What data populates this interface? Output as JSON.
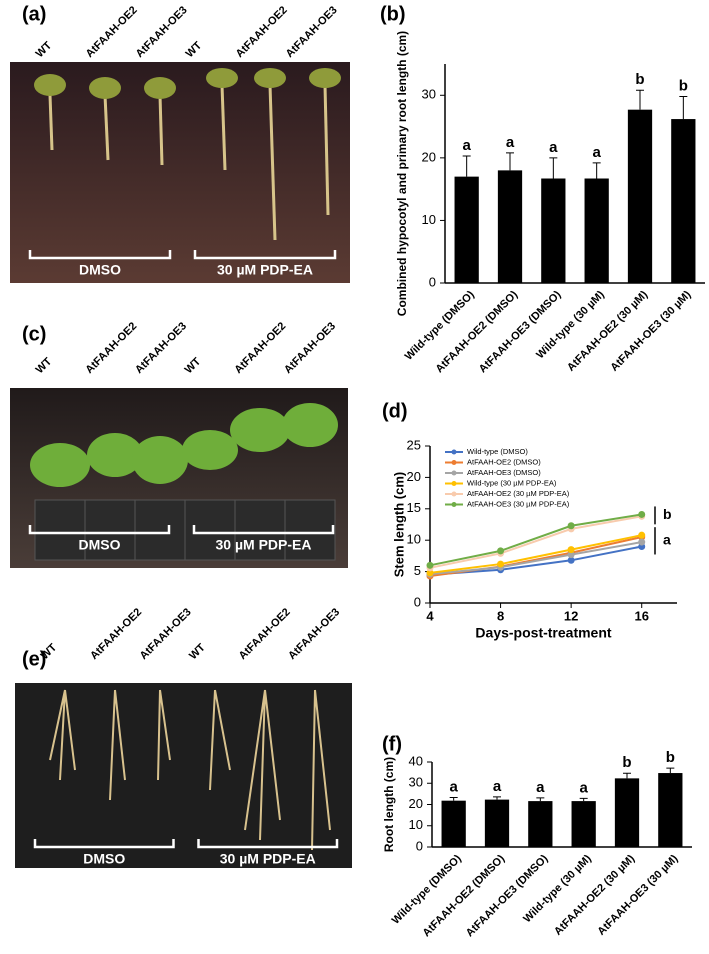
{
  "figure": {
    "panel_labels": [
      "(a)",
      "(b)",
      "(c)",
      "(d)",
      "(e)",
      "(f)"
    ],
    "photos": [
      {
        "lanes": [
          "WT",
          "AtFAAH-OE2",
          "AtFAAH-OE3",
          "WT",
          "AtFAAH-OE2",
          "AtFAAH-OE3"
        ],
        "groups": [
          "DMSO",
          "30 µM PDP-EA"
        ]
      },
      {
        "lanes": [
          "WT",
          "AtFAAH-OE2",
          "AtFAAH-OE3",
          "WT",
          "AtFAAH-OE2",
          "AtFAAH-OE3"
        ],
        "groups": [
          "DMSO",
          "30 µM PDP-EA"
        ]
      },
      {
        "lanes": [
          "WT",
          "AtFAAH-OE2",
          "AtFAAH-OE3",
          "WT",
          "AtFAAH-OE2",
          "AtFAAH-OE3"
        ],
        "groups": [
          "DMSO",
          "30 µM PDP-EA"
        ]
      }
    ]
  },
  "chart_data": [
    {
      "type": "bar",
      "y_label": "Combined hypocotyl and primary root length (cm)",
      "categories": [
        "Wild-type (DMSO)",
        "AtFAAH-OE2 (DMSO)",
        "AtFAAH-OE3 (DMSO)",
        "Wild-type (30 µM)",
        "AtFAAH-OE2 (30 µM)",
        "AtFAAH-OE3 (30 µM)"
      ],
      "values": [
        17,
        18,
        16.7,
        16.7,
        27.7,
        26.2
      ],
      "errors": [
        3.3,
        2.8,
        3.3,
        2.5,
        3.1,
        3.6
      ],
      "annotations": [
        "a",
        "a",
        "a",
        "a",
        "b",
        "b"
      ],
      "color": "#000000",
      "ylim": [
        0,
        35
      ],
      "yticks": [
        0,
        10,
        20,
        30
      ]
    },
    {
      "type": "line",
      "y_label": "Stem length (cm)",
      "x_label": "Days-post-treatment",
      "x": [
        4,
        8,
        12,
        16
      ],
      "series": [
        {
          "name": "Wild-type (DMSO)",
          "color": "#4472c4",
          "values": [
            4.5,
            5.3,
            6.8,
            9.0
          ]
        },
        {
          "name": "AtFAAH-OE2 (DMSO)",
          "color": "#ed7d31",
          "values": [
            4.3,
            5.8,
            8.0,
            10.5
          ]
        },
        {
          "name": "AtFAAH-OE3 (DMSO)",
          "color": "#a5a5a5",
          "values": [
            4.6,
            5.7,
            7.7,
            9.7
          ]
        },
        {
          "name": "Wild-type (30 µM PDP-EA)",
          "color": "#ffc000",
          "values": [
            4.8,
            6.2,
            8.5,
            10.8
          ]
        },
        {
          "name": "AtFAAH-OE2 (30 µM PDP-EA)",
          "color": "#f8cbad",
          "values": [
            5.6,
            7.9,
            11.8,
            13.8
          ]
        },
        {
          "name": "AtFAAH-OE3 (30 µM PDP-EA)",
          "color": "#70ad47",
          "values": [
            6.0,
            8.3,
            12.3,
            14.1
          ]
        }
      ],
      "annotations": [
        "b",
        "a"
      ],
      "xlim": [
        4,
        18
      ],
      "xticks": [
        4,
        8,
        12,
        16
      ],
      "ylim": [
        0,
        25
      ],
      "yticks": [
        0,
        5,
        10,
        15,
        20,
        25
      ]
    },
    {
      "type": "bar",
      "y_label": "Root length (cm)",
      "categories": [
        "Wild-type (DMSO)",
        "AtFAAH-OE2 (DMSO)",
        "AtFAAH-OE3 (DMSO)",
        "Wild-type (30 µM)",
        "AtFAAH-OE2 (30 µM)",
        "AtFAAH-OE3 (30 µM)"
      ],
      "values": [
        21.8,
        22.3,
        21.6,
        21.6,
        32.3,
        34.8
      ],
      "errors": [
        1.5,
        1.3,
        1.5,
        1.3,
        2.4,
        2.3
      ],
      "annotations": [
        "a",
        "a",
        "a",
        "a",
        "b",
        "b"
      ],
      "color": "#000000",
      "ylim": [
        0,
        40
      ],
      "yticks": [
        0,
        10,
        20,
        30,
        40
      ]
    }
  ]
}
